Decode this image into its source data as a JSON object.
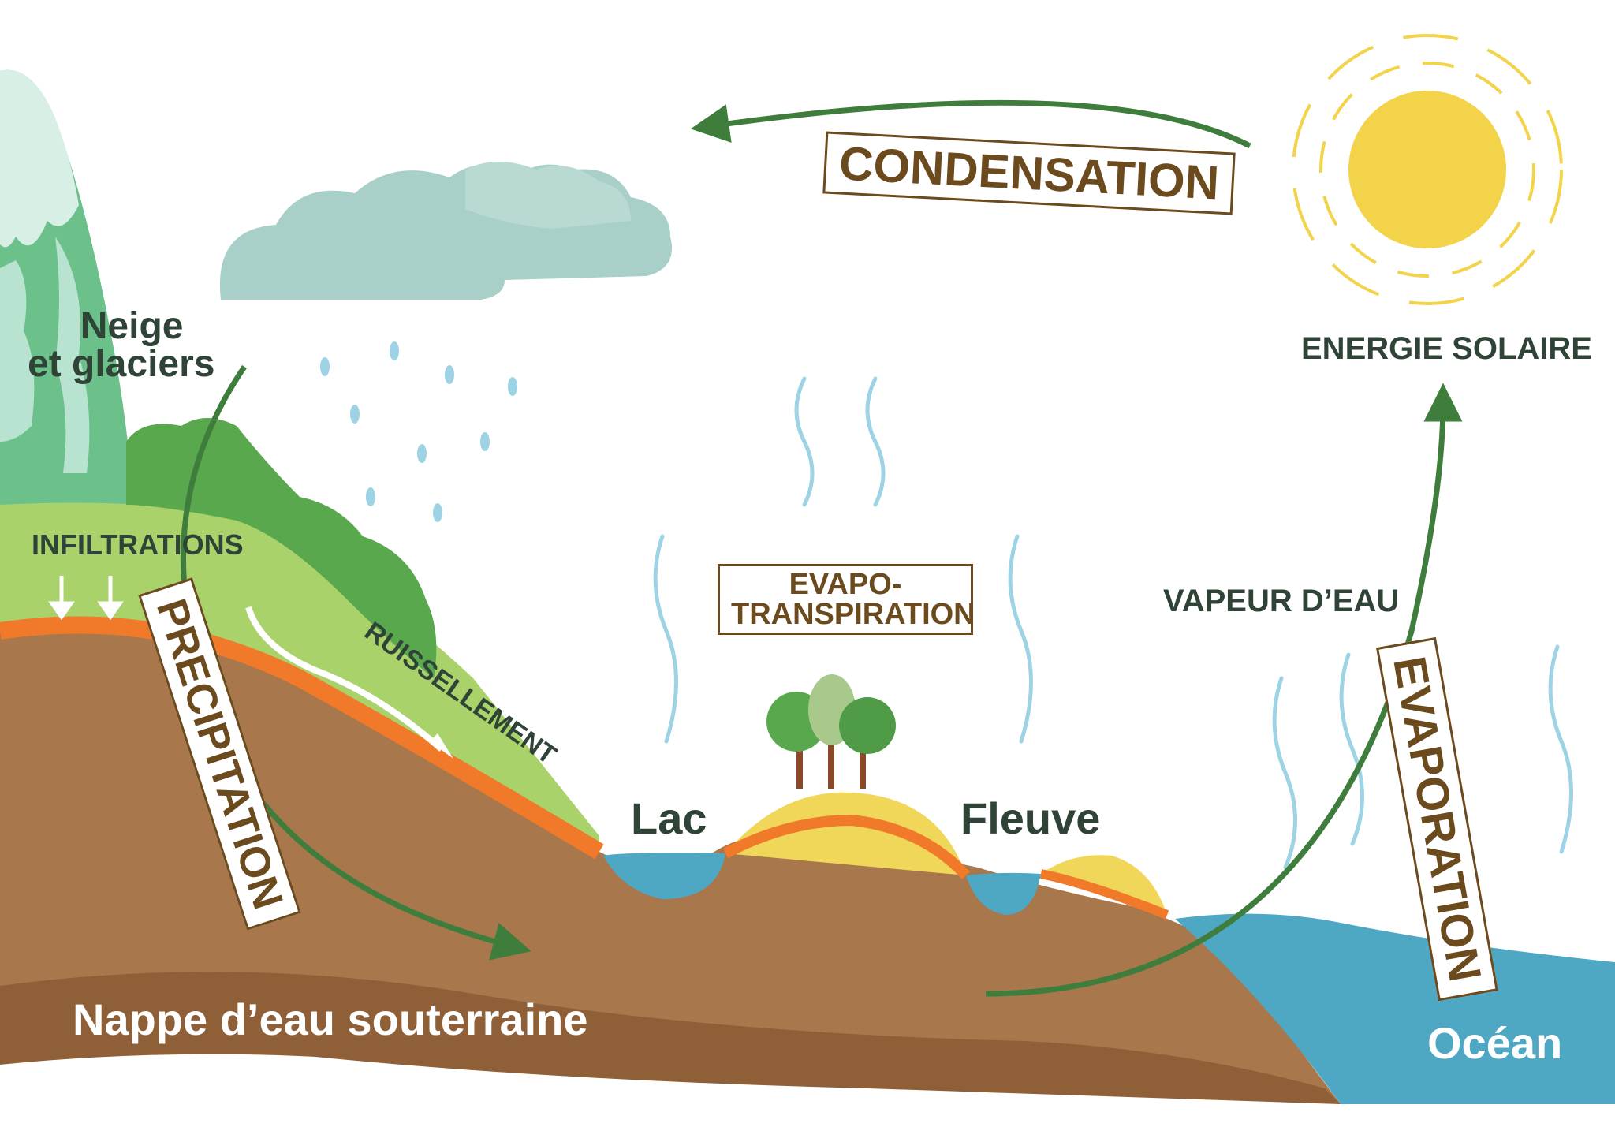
{
  "labels": {
    "condensation": "CONDENSATION",
    "energie_solaire": "ENERGIE SOLAIRE",
    "neige_line1": "Neige",
    "neige_line2": "et glaciers",
    "infiltrations": "INFILTRATIONS",
    "precipitation": "PRECIPITATION",
    "ruissellement": "RUISSELLEMENT",
    "evapo_line1": "EVAPO-",
    "evapo_line2": "TRANSPIRATION",
    "vapeur": "VAPEUR D’EAU",
    "evaporation": "EVAPORATION",
    "lac": "Lac",
    "fleuve": "Fleuve",
    "nappe": "Nappe d’eau souterraine",
    "ocean": "Océan"
  },
  "colors": {
    "arrow": "#3f7d3c",
    "label_text": "#2f4437",
    "box_text": "#6b4a1e",
    "soil": "#a8774b",
    "soil_dark": "#8f5f38",
    "topsoil": "#f07a2a",
    "grass": "#a9d26b",
    "bush": "#5aa84e",
    "water": "#4ea8c4",
    "sun": "#f3d34a",
    "cloud": "#a8cfc8",
    "vapor": "#9dd3e4",
    "mountain": "#6cc08a",
    "snow": "#d8efe6"
  }
}
